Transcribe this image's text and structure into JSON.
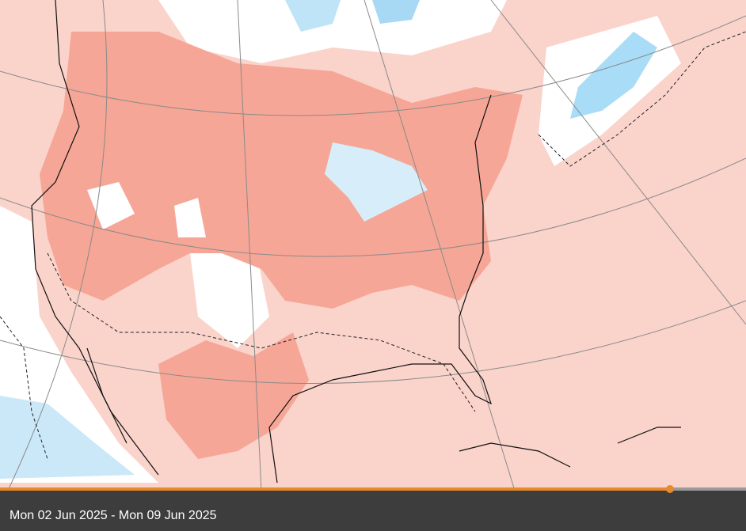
{
  "timeline": {
    "caption": "Mon 02 Jun 2025 - Mon 09 Jun 2025"
  }
}
